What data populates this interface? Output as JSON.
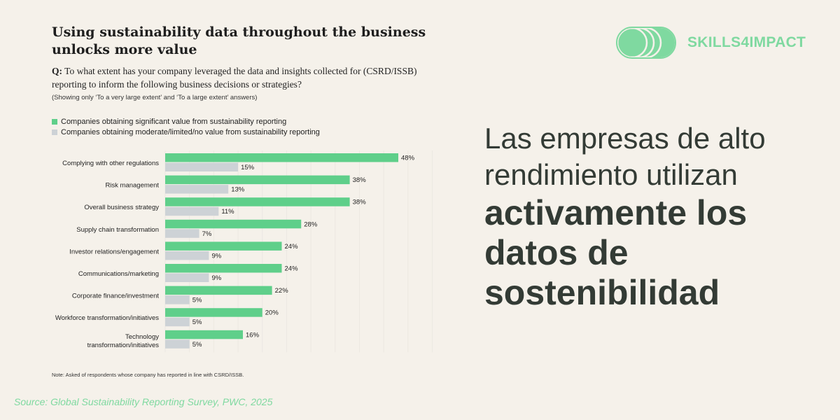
{
  "brand": {
    "name": "SKILLS4IMPACT",
    "color": "#7fd9a0"
  },
  "headline": {
    "light_lines": [
      "Las empresas de alto",
      "rendimiento utilizan"
    ],
    "bold_lines": [
      "activamente los",
      "datos de",
      "sostenibilidad"
    ]
  },
  "source": "Source: Global Sustainability Reporting Survey, PWC, 2025",
  "chart_data": {
    "type": "bar",
    "orientation": "horizontal",
    "title": "Using sustainability data throughout the business unlocks more value",
    "question_prefix": "Q:",
    "question": "To what extent has your company leveraged the data and insights collected for (CSRD/ISSB) reporting to inform the following business decisions or strategies?",
    "subtitle": "(Showing only ‘To a very large extent’ and ‘To a large extent’ answers)",
    "categories": [
      "Complying with other regulations",
      "Risk management",
      "Overall business strategy",
      "Supply chain transformation",
      "Investor relations/engagement",
      "Communications/marketing",
      "Corporate finance/investment",
      "Workforce transformation/initiatives",
      "Technology transformation/initiatives"
    ],
    "series": [
      {
        "name": "Companies obtaining significant value from sustainability reporting",
        "color": "#5fcf8a",
        "values": [
          48,
          38,
          38,
          28,
          24,
          24,
          22,
          20,
          16
        ]
      },
      {
        "name": "Companies obtaining moderate/limited/no value from sustainability reporting",
        "color": "#cdd2d6",
        "values": [
          15,
          13,
          11,
          7,
          9,
          9,
          5,
          5,
          5
        ]
      }
    ],
    "value_suffix": "%",
    "xlim": [
      0,
      55
    ],
    "legend": "top-left",
    "note": "Note: Asked of respondents whose company has reported in line with CSRD/ISSB."
  }
}
